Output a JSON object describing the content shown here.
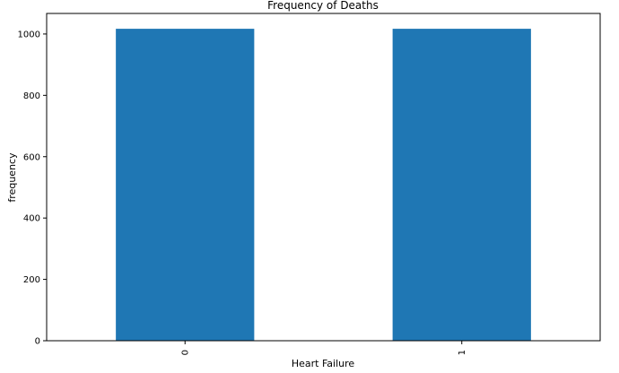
{
  "chart_data": {
    "type": "bar",
    "title": "Frequency of Deaths",
    "xlabel": "Heart Failure",
    "ylabel": "frequency",
    "categories": [
      "0",
      "1"
    ],
    "values": [
      1017,
      1017
    ],
    "ylim": [
      0,
      1067
    ],
    "yticks": [
      0,
      200,
      400,
      600,
      800,
      1000
    ],
    "bar_color": "#1f77b4",
    "grid": false,
    "legend": "none"
  }
}
